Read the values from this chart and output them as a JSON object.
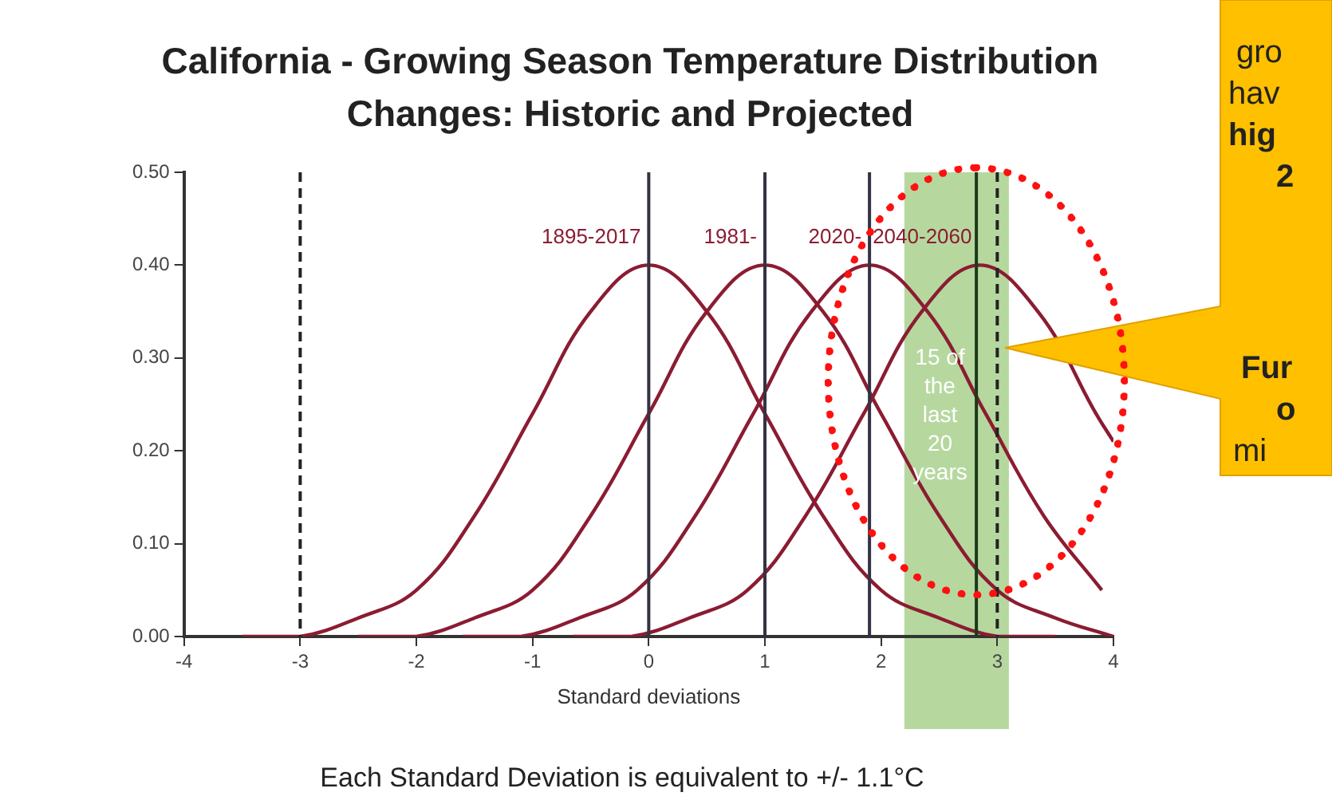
{
  "chart_data": {
    "type": "line",
    "title": "California - Growing Season Temperature Distribution Changes: Historic and Projected",
    "xlabel": "Standard deviations",
    "xlim": [
      -4,
      4
    ],
    "xticks": [
      -4,
      -3,
      -2,
      -1,
      0,
      1,
      2,
      3,
      4
    ],
    "ylim": [
      0,
      0.5
    ],
    "yticks": [
      {
        "value": 0,
        "label": "0.00"
      },
      {
        "value": 0.1,
        "label": "0.10"
      },
      {
        "value": 0.2,
        "label": "0.20"
      },
      {
        "value": 0.3,
        "label": "0.30"
      },
      {
        "value": 0.4,
        "label": "0.40"
      },
      {
        "value": 0.5,
        "label": "0.50"
      }
    ],
    "grid": false,
    "legend": false,
    "marker": "none",
    "line_style": "solid",
    "series": [
      {
        "name": "1895-2017",
        "color": "#8b1c32",
        "x": [
          -3.5,
          -3,
          -2.5,
          -2,
          -1.5,
          -1,
          -0.5,
          0,
          0.5,
          1,
          1.5,
          2,
          2.5,
          3,
          3.5
        ],
        "values": [
          0,
          0,
          0.02,
          0.05,
          0.13,
          0.24,
          0.35,
          0.4,
          0.35,
          0.24,
          0.13,
          0.05,
          0.02,
          0,
          0
        ]
      },
      {
        "name": "1981-",
        "color": "#8b1c32",
        "x": [
          -2.5,
          -2,
          -1.5,
          -1,
          -0.5,
          0,
          0.5,
          1,
          1.5,
          2,
          2.5,
          3,
          3.5,
          4
        ],
        "values": [
          0,
          0,
          0.02,
          0.05,
          0.13,
          0.24,
          0.35,
          0.4,
          0.35,
          0.24,
          0.13,
          0.05,
          0.02,
          0
        ]
      },
      {
        "name": "2020-",
        "color": "#8b1c32",
        "x": [
          -1.6,
          -1.1,
          -0.6,
          -0.1,
          0.4,
          0.9,
          1.4,
          1.9,
          2.4,
          2.9,
          3.4,
          3.9
        ],
        "values": [
          0,
          0,
          0.02,
          0.05,
          0.13,
          0.24,
          0.35,
          0.4,
          0.35,
          0.24,
          0.13,
          0.05
        ]
      },
      {
        "name": "2040-2060",
        "color": "#8b1c32",
        "x": [
          -0.65,
          -0.15,
          0.35,
          0.85,
          1.35,
          1.85,
          2.35,
          2.85,
          3.35,
          3.85,
          4
        ],
        "values": [
          0,
          0,
          0.02,
          0.05,
          0.13,
          0.24,
          0.35,
          0.4,
          0.35,
          0.24,
          0.21
        ]
      }
    ],
    "ref_lines": [
      {
        "axis": "x",
        "value": -3,
        "line_style": "dashed",
        "color": "#222222"
      },
      {
        "axis": "x",
        "value": 0,
        "line_style": "solid",
        "color": "#333344"
      },
      {
        "axis": "x",
        "value": 1,
        "line_style": "solid",
        "color": "#333344"
      },
      {
        "axis": "x",
        "value": 1.9,
        "line_style": "solid",
        "color": "#333344"
      },
      {
        "axis": "x",
        "value": 2.82,
        "line_style": "solid",
        "color": "#1a3a1a"
      },
      {
        "axis": "x",
        "value": 3,
        "line_style": "dashed",
        "color": "#222222"
      }
    ],
    "bands": [
      {
        "axis": "x",
        "from": 2.2,
        "to": 3.1,
        "label": "15 of the last 20 years",
        "color": "#a9d18e"
      }
    ],
    "annotations": [
      "Each Standard Deviation is equivalent to +/- 1.1°C",
      "gro",
      "hav",
      "hig",
      "2",
      "Fur",
      "o",
      "mi"
    ]
  }
}
